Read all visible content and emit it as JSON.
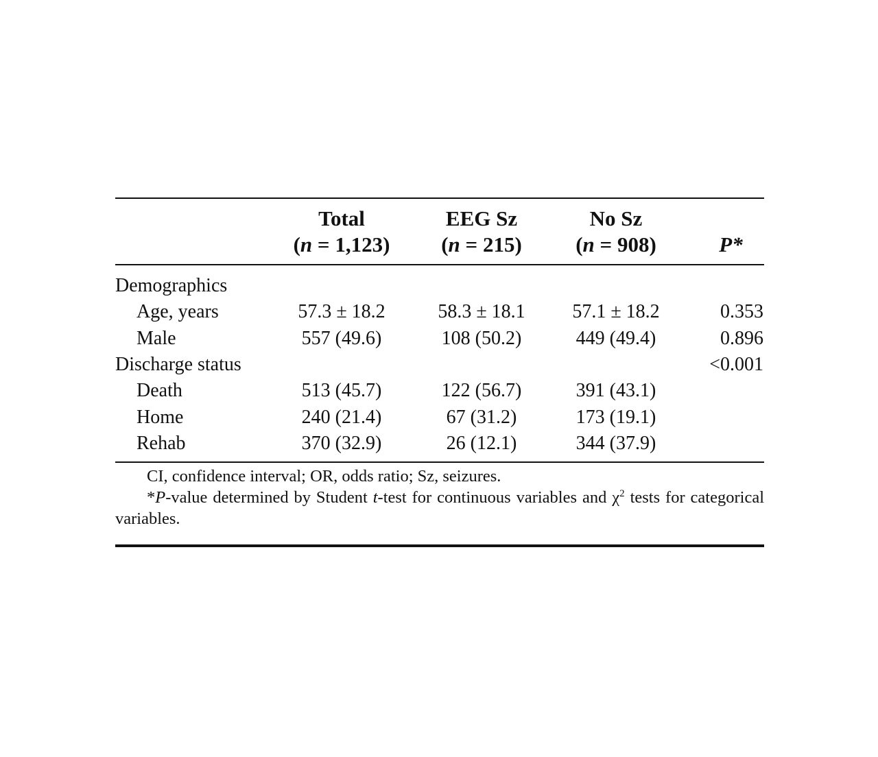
{
  "table": {
    "headers": {
      "total": {
        "name": "Total",
        "n_prefix": "(",
        "n_var": "n",
        "n_value": " = 1,123)"
      },
      "eeg_sz": {
        "name": "EEG Sz",
        "n_prefix": "(",
        "n_var": "n",
        "n_value": " = 215)"
      },
      "no_sz": {
        "name": "No Sz",
        "n_prefix": "(",
        "n_var": "n",
        "n_value": " = 908)"
      },
      "p": {
        "name": "P*"
      }
    },
    "rows": [
      {
        "label": "Demographics",
        "indent": false,
        "total": "",
        "eeg_sz": "",
        "no_sz": "",
        "p": ""
      },
      {
        "label": "Age, years",
        "indent": true,
        "total": "57.3 ± 18.2",
        "eeg_sz": "58.3 ± 18.1",
        "no_sz": "57.1 ± 18.2",
        "p": "0.353"
      },
      {
        "label": "Male",
        "indent": true,
        "total": "557 (49.6)",
        "eeg_sz": "108 (50.2)",
        "no_sz": "449 (49.4)",
        "p": "0.896"
      },
      {
        "label": "Discharge status",
        "indent": false,
        "total": "",
        "eeg_sz": "",
        "no_sz": "",
        "p": "<0.001"
      },
      {
        "label": "Death",
        "indent": true,
        "total": "513 (45.7)",
        "eeg_sz": "122 (56.7)",
        "no_sz": "391 (43.1)",
        "p": ""
      },
      {
        "label": "Home",
        "indent": true,
        "total": "240 (21.4)",
        "eeg_sz": "67 (31.2)",
        "no_sz": "173 (19.1)",
        "p": ""
      },
      {
        "label": "Rehab",
        "indent": true,
        "total": "370 (32.9)",
        "eeg_sz": "26 (12.1)",
        "no_sz": "344 (37.9)",
        "p": ""
      }
    ]
  },
  "footnotes": {
    "abbreviations": "CI, confidence interval; OR, odds ratio; Sz, seizures.",
    "pvalue_star": "*",
    "pvalue_p": "P",
    "pvalue_text_1": "-value determined by Student ",
    "pvalue_t": "t",
    "pvalue_text_2": "-test for continuous variables and χ",
    "pvalue_sup": "2",
    "pvalue_text_3": " tests for categorical variables."
  }
}
